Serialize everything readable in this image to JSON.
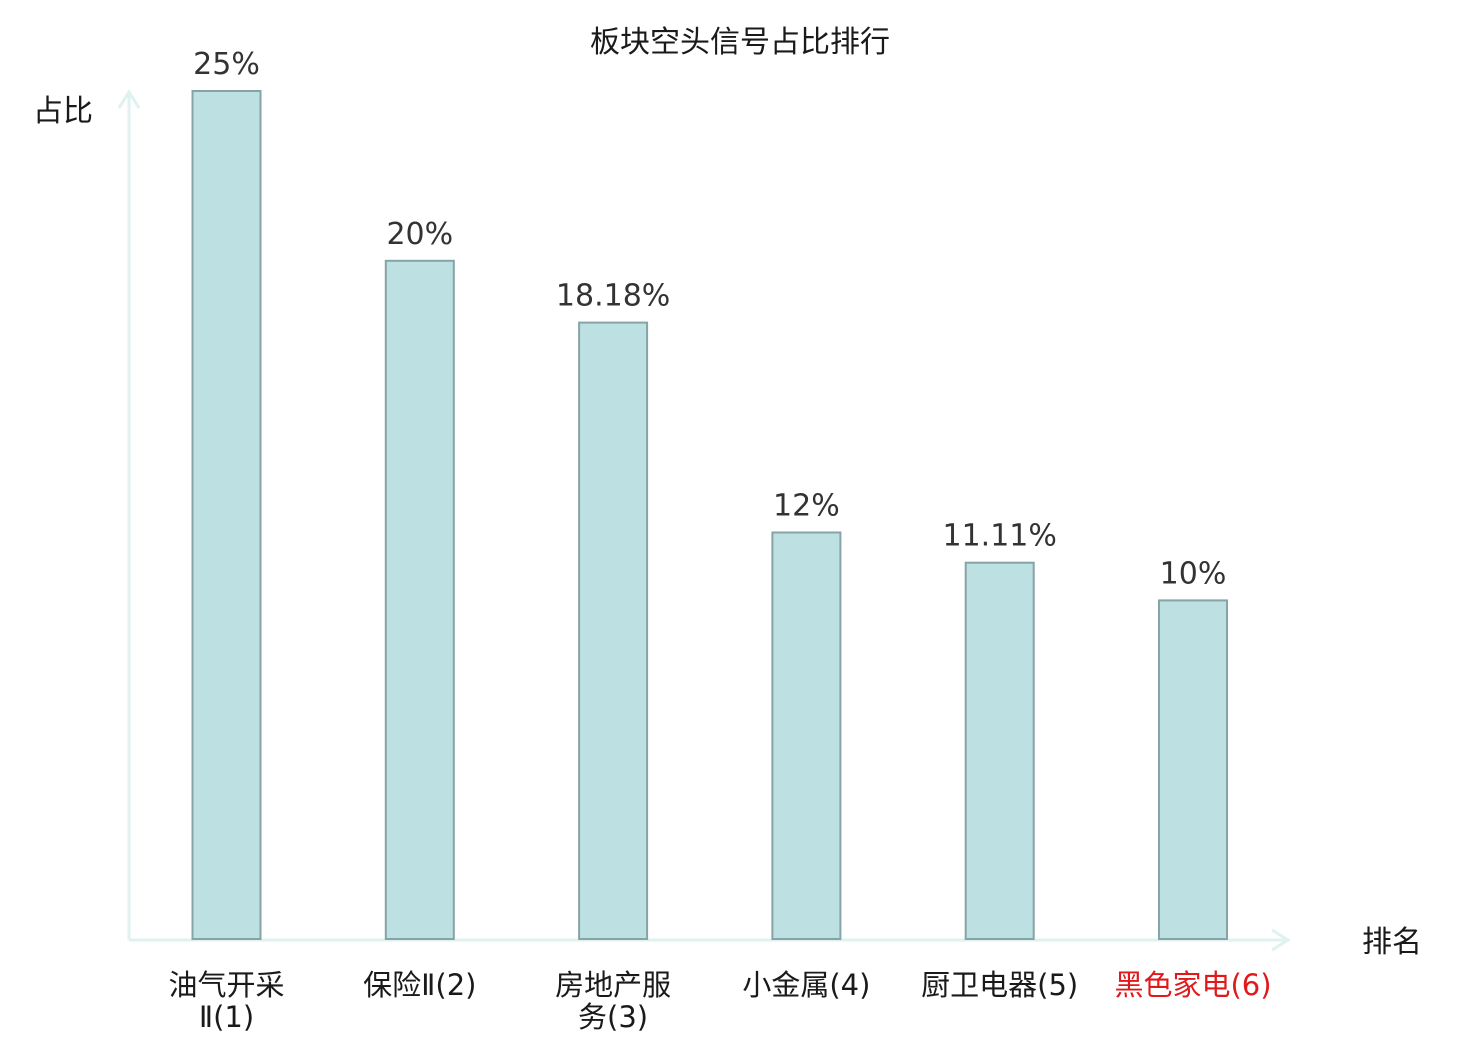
{
  "chart_data": {
    "type": "bar",
    "title": "板块空头信号占比排行",
    "ylabel": "占比",
    "xlabel": "排名",
    "categories": [
      [
        "油气开采",
        "Ⅱ(1)"
      ],
      [
        "保险Ⅱ(2)"
      ],
      [
        "房地产服",
        "务(3)"
      ],
      [
        "小金属(4)"
      ],
      [
        "厨卫电器(5)"
      ],
      [
        "黑色家电(6)"
      ]
    ],
    "values": [
      25,
      20,
      18.18,
      12,
      11.11,
      10
    ],
    "value_labels": [
      "25%",
      "20%",
      "18.18%",
      "12%",
      "11.11%",
      "10%"
    ],
    "highlight_index": 5,
    "ylim": [
      0,
      25
    ],
    "grid": false,
    "colors": {
      "bar_fill": "#bde0e2",
      "bar_stroke": "#86a4a6",
      "axis": "#dff2ef",
      "text": "#333333",
      "highlight_text": "#e0191b"
    }
  }
}
